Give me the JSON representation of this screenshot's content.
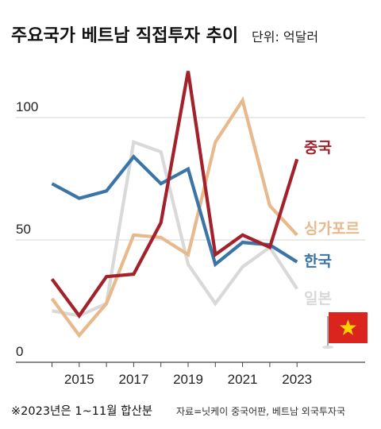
{
  "title": "주요국가 베트남 직접투자 추이",
  "unit": "단위: 억달러",
  "note": "※2023년은 1~11월 합산분",
  "source": "자료=닛케이 중국어판, 베트남 외국투자국",
  "flag_colors": {
    "field": "#d9251d",
    "star": "#ffd200",
    "pole": "#aaaaaa"
  },
  "chart_data": {
    "type": "line",
    "title": "주요국가 베트남 직접투자 추이",
    "xlabel": "",
    "ylabel": "",
    "x": [
      2014,
      2015,
      2016,
      2017,
      2018,
      2019,
      2020,
      2021,
      2022,
      2023
    ],
    "xticks": [
      2015,
      2017,
      2019,
      2021,
      2023
    ],
    "yticks": [
      0,
      50,
      100
    ],
    "ylim": [
      0,
      120
    ],
    "xlim": [
      2013.5,
      2023.8
    ],
    "grid": true,
    "legend": "inline labels at right",
    "series": [
      {
        "name": "일본",
        "color": "#d9d9d9",
        "values": [
          21,
          19,
          24,
          90,
          86,
          40,
          24,
          39,
          47,
          30
        ]
      },
      {
        "name": "싱가포르",
        "color": "#e8b98c",
        "values": [
          26,
          11,
          24,
          52,
          51,
          44,
          90,
          107,
          64,
          52
        ]
      },
      {
        "name": "한국",
        "color": "#3c74a8",
        "values": [
          73,
          67,
          70,
          84,
          73,
          79,
          40,
          49,
          48,
          41
        ]
      },
      {
        "name": "중국",
        "color": "#a3212b",
        "values": [
          34,
          19,
          35,
          36,
          57,
          119,
          44,
          52,
          47,
          83
        ]
      }
    ]
  }
}
